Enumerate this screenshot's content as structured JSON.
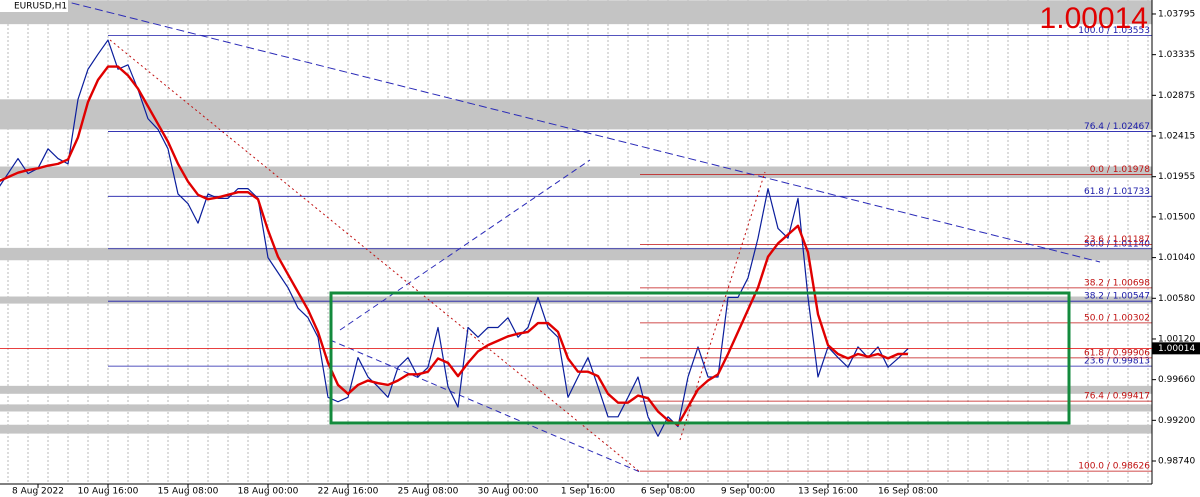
{
  "chart_data": {
    "type": "line",
    "symbol": "EURUSD,H1",
    "last": 1.00014,
    "categories": [
      null,
      null,
      null,
      null,
      "8 Aug 2022",
      null,
      null,
      null,
      null,
      null,
      null,
      "10 Aug 16:00",
      null,
      null,
      null,
      null,
      null,
      null,
      null,
      "15 Aug 08:00",
      null,
      null,
      null,
      null,
      null,
      null,
      null,
      "18 Aug 00:00",
      null,
      null,
      null,
      null,
      null,
      null,
      null,
      "22 Aug 16:00",
      null,
      null,
      null,
      null,
      null,
      null,
      null,
      "25 Aug 08:00",
      null,
      null,
      null,
      null,
      null,
      null,
      null,
      "30 Aug 00:00",
      null,
      null,
      null,
      null,
      null,
      null,
      null,
      "1 Sep 16:00",
      null,
      null,
      null,
      null,
      null,
      null,
      null,
      "6 Sep 08:00",
      null,
      null,
      null,
      null,
      null,
      null,
      null,
      "9 Sep 00:00",
      null,
      null,
      null,
      null,
      null,
      null,
      null,
      "13 Sep 16:00",
      null,
      null,
      null,
      null,
      null,
      null,
      null,
      "16 Sep 08:00"
    ],
    "series": [
      {
        "color": "#0b1e9c",
        "values": [
          1.0182,
          1.0199,
          1.0216,
          1.0199,
          1.0205,
          1.0227,
          1.0216,
          1.021,
          1.0283,
          1.0317,
          1.0334,
          1.035,
          1.0317,
          1.0322,
          1.0294,
          1.0261,
          1.0249,
          1.0227,
          1.0176,
          1.0165,
          1.0143,
          1.0176,
          1.0171,
          1.0171,
          1.0182,
          1.0182,
          1.0171,
          1.0104,
          1.0087,
          1.007,
          1.0047,
          1.0036,
          1.0014,
          0.9946,
          0.9941,
          0.9946,
          0.9991,
          0.9969,
          0.9958,
          0.9946,
          0.998,
          0.9991,
          0.9969,
          0.998,
          1.0025,
          0.9958,
          0.9935,
          1.0025,
          1.0014,
          1.0025,
          1.0025,
          1.0036,
          1.0014,
          1.0025,
          1.0059,
          1.0025,
          1.0014,
          0.9946,
          0.9969,
          0.9991,
          0.9958,
          0.9924,
          0.9924,
          0.9946,
          0.9969,
          0.9924,
          0.9902,
          0.9924,
          0.9913,
          0.9969,
          1.0003,
          0.9969,
          0.9969,
          1.0059,
          1.0059,
          1.0081,
          1.0126,
          1.0182,
          1.0137,
          1.0126,
          1.0171,
          1.0059,
          0.9969,
          1.0003,
          0.9991,
          0.998,
          1.0003,
          0.9991,
          1.0003,
          0.998,
          0.999,
          1.0001
        ]
      },
      {
        "color": "#e00000",
        "values": [
          1.019,
          1.0195,
          1.02,
          1.0203,
          1.0205,
          1.0208,
          1.021,
          1.0215,
          1.024,
          1.028,
          1.0305,
          1.032,
          1.032,
          1.031,
          1.0295,
          1.0275,
          1.0255,
          1.0235,
          1.021,
          1.019,
          1.0175,
          1.017,
          1.0172,
          1.0175,
          1.0178,
          1.0178,
          1.017,
          1.0135,
          1.0105,
          1.0085,
          1.0065,
          1.0045,
          1.002,
          0.9985,
          0.996,
          0.995,
          0.996,
          0.9965,
          0.9962,
          0.996,
          0.9965,
          0.9972,
          0.9972,
          0.9975,
          0.999,
          0.9985,
          0.997,
          0.9985,
          0.9998,
          1.0005,
          1.001,
          1.0015,
          1.0018,
          1.002,
          1.003,
          1.003,
          1.002,
          0.999,
          0.9975,
          0.9975,
          0.997,
          0.995,
          0.994,
          0.994,
          0.9948,
          0.9945,
          0.993,
          0.992,
          0.9915,
          0.9935,
          0.9955,
          0.9965,
          0.9972,
          0.9995,
          1.002,
          1.0045,
          1.007,
          1.0105,
          1.012,
          1.013,
          1.014,
          1.011,
          1.004,
          1.0005,
          0.9995,
          0.999,
          0.9995,
          0.9992,
          0.9995,
          0.999,
          0.9995,
          0.9995
        ]
      }
    ],
    "ylim": [
      0.9848,
      1.03953
    ],
    "yticks": [
      1.03795,
      1.03335,
      1.02875,
      1.02415,
      1.01955,
      {
        "value": 1.015,
        "label": "1.01500"
      },
      {
        "value": 1.0104,
        "label": "1.01040"
      },
      {
        "value": 1.0058,
        "label": "1.00580"
      },
      {
        "value": 1.0012,
        "label": "1.00120"
      },
      {
        "value": 0.9966,
        "label": "0.99660"
      },
      {
        "value": 0.992,
        "label": "0.99200"
      },
      {
        "value": 0.9874,
        "label": "0.98740"
      }
    ],
    "zones": [
      [
        1.0368,
        1.0395
      ],
      [
        1.0249,
        1.0283
      ],
      [
        1.0194,
        1.0207
      ],
      [
        1.0101,
        1.0115
      ],
      [
        1.0052,
        1.006
      ],
      [
        0.995,
        0.9959
      ],
      [
        0.993,
        0.9938
      ],
      [
        0.9905,
        0.9915
      ]
    ],
    "fib_blue": {
      "color": "#1a1aa8",
      "levels": [
        {
          "value": 1.03553,
          "label": "100.0 / 1.03553"
        },
        {
          "value": 1.02467,
          "label": "76.4 / 1.02467"
        },
        {
          "value": 1.01733,
          "label": "61.8 / 1.01733"
        },
        {
          "value": 1.0114,
          "label": "50.0 / 1.01140"
        },
        {
          "value": 1.00547,
          "label": "38.2 / 1.00547"
        },
        {
          "value": 0.99813,
          "label": "23.6 / 0.99813"
        }
      ]
    },
    "fib_red": {
      "color": "#c01010",
      "levels": [
        {
          "value": 1.01978,
          "label": "0.0 / 1.01978"
        },
        {
          "value": 1.01187,
          "label": "23.6 / 1.01187"
        },
        {
          "value": 1.00698,
          "label": "38.2 / 1.00698"
        },
        {
          "value": 1.00302,
          "label": "50.0 / 1.00302"
        },
        {
          "value": 0.99906,
          "label": "61.8 / 0.99906"
        },
        {
          "value": 0.99417,
          "label": "76.4 / 0.99417"
        },
        {
          "value": 0.98626,
          "label": "100.0 / 0.98626"
        }
      ]
    }
  }
}
